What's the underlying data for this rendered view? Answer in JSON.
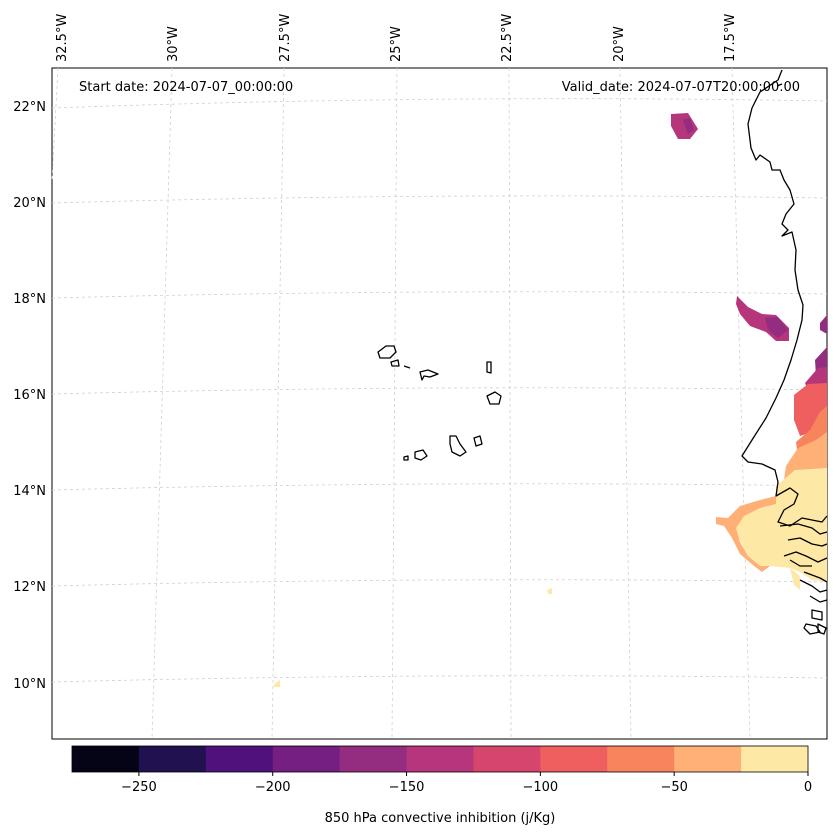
{
  "header": {
    "start_date": "Start date: 2024-07-07_00:00:00",
    "valid_date": "Valid_date: 2024-07-07T20:00:00.00"
  },
  "axes": {
    "lon_labels": [
      "32.5°W",
      "30°W",
      "27.5°W",
      "25°W",
      "22.5°W",
      "20°W",
      "17.5°W"
    ],
    "lat_labels": [
      "22°N",
      "20°N",
      "18°N",
      "16°N",
      "14°N",
      "12°N",
      "10°N"
    ]
  },
  "colorbar": {
    "label": "850 hPa convective inhibition (j/Kg)",
    "tick_labels": [
      "−250",
      "−200",
      "−150",
      "−100",
      "−50",
      "0"
    ],
    "tick_values": [
      -250,
      -200,
      -150,
      -100,
      -50,
      0
    ],
    "range": [
      -275,
      0
    ],
    "colors": [
      "#050417",
      "#221150",
      "#4f117b",
      "#741f81",
      "#942c80",
      "#b5367a",
      "#d6456c",
      "#ef5f5f",
      "#f8845d",
      "#feb077",
      "#fde8a6"
    ]
  },
  "chart_data": {
    "type": "heatmap",
    "title": "",
    "variable": "850 hPa convective inhibition",
    "units": "j/Kg",
    "start_date": "2024-07-07_00:00:00",
    "valid_date": "2024-07-07T20:00:00.00",
    "lon_range": [
      -33,
      -15.5
    ],
    "lat_range": [
      9,
      22.5
    ],
    "features": [
      "Cape Verde islands",
      "West African coastline"
    ]
  }
}
